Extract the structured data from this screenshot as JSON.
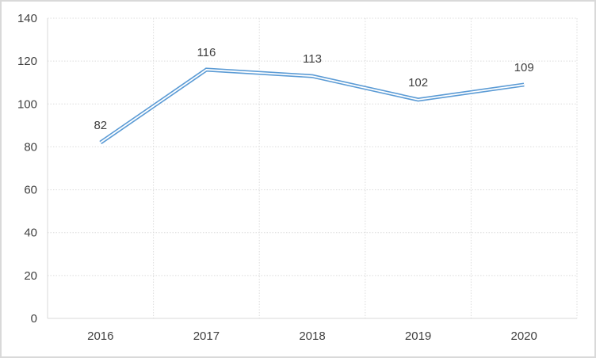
{
  "window": {
    "background": "#ffffff",
    "frame_border_color": "#d9d9d9"
  },
  "chart_data": {
    "type": "line",
    "title": "",
    "xlabel": "",
    "ylabel": "",
    "categories": [
      "2016",
      "2017",
      "2018",
      "2019",
      "2020"
    ],
    "values": [
      82,
      116,
      113,
      102,
      109
    ],
    "data_labels": [
      "82",
      "116",
      "113",
      "102",
      "109"
    ],
    "ylim": [
      0,
      140
    ],
    "ytick_step": 20,
    "yticks": [
      0,
      20,
      40,
      60,
      80,
      100,
      120,
      140
    ],
    "grid": true,
    "legend": "none",
    "line_color": "#5b9bd5",
    "line_inner_color": "#ffffff",
    "grid_color": "#dcdcdc",
    "axis_color": "#d9d9d9",
    "text_color": "#3f3f3f",
    "plot_background": "#ffffff"
  }
}
